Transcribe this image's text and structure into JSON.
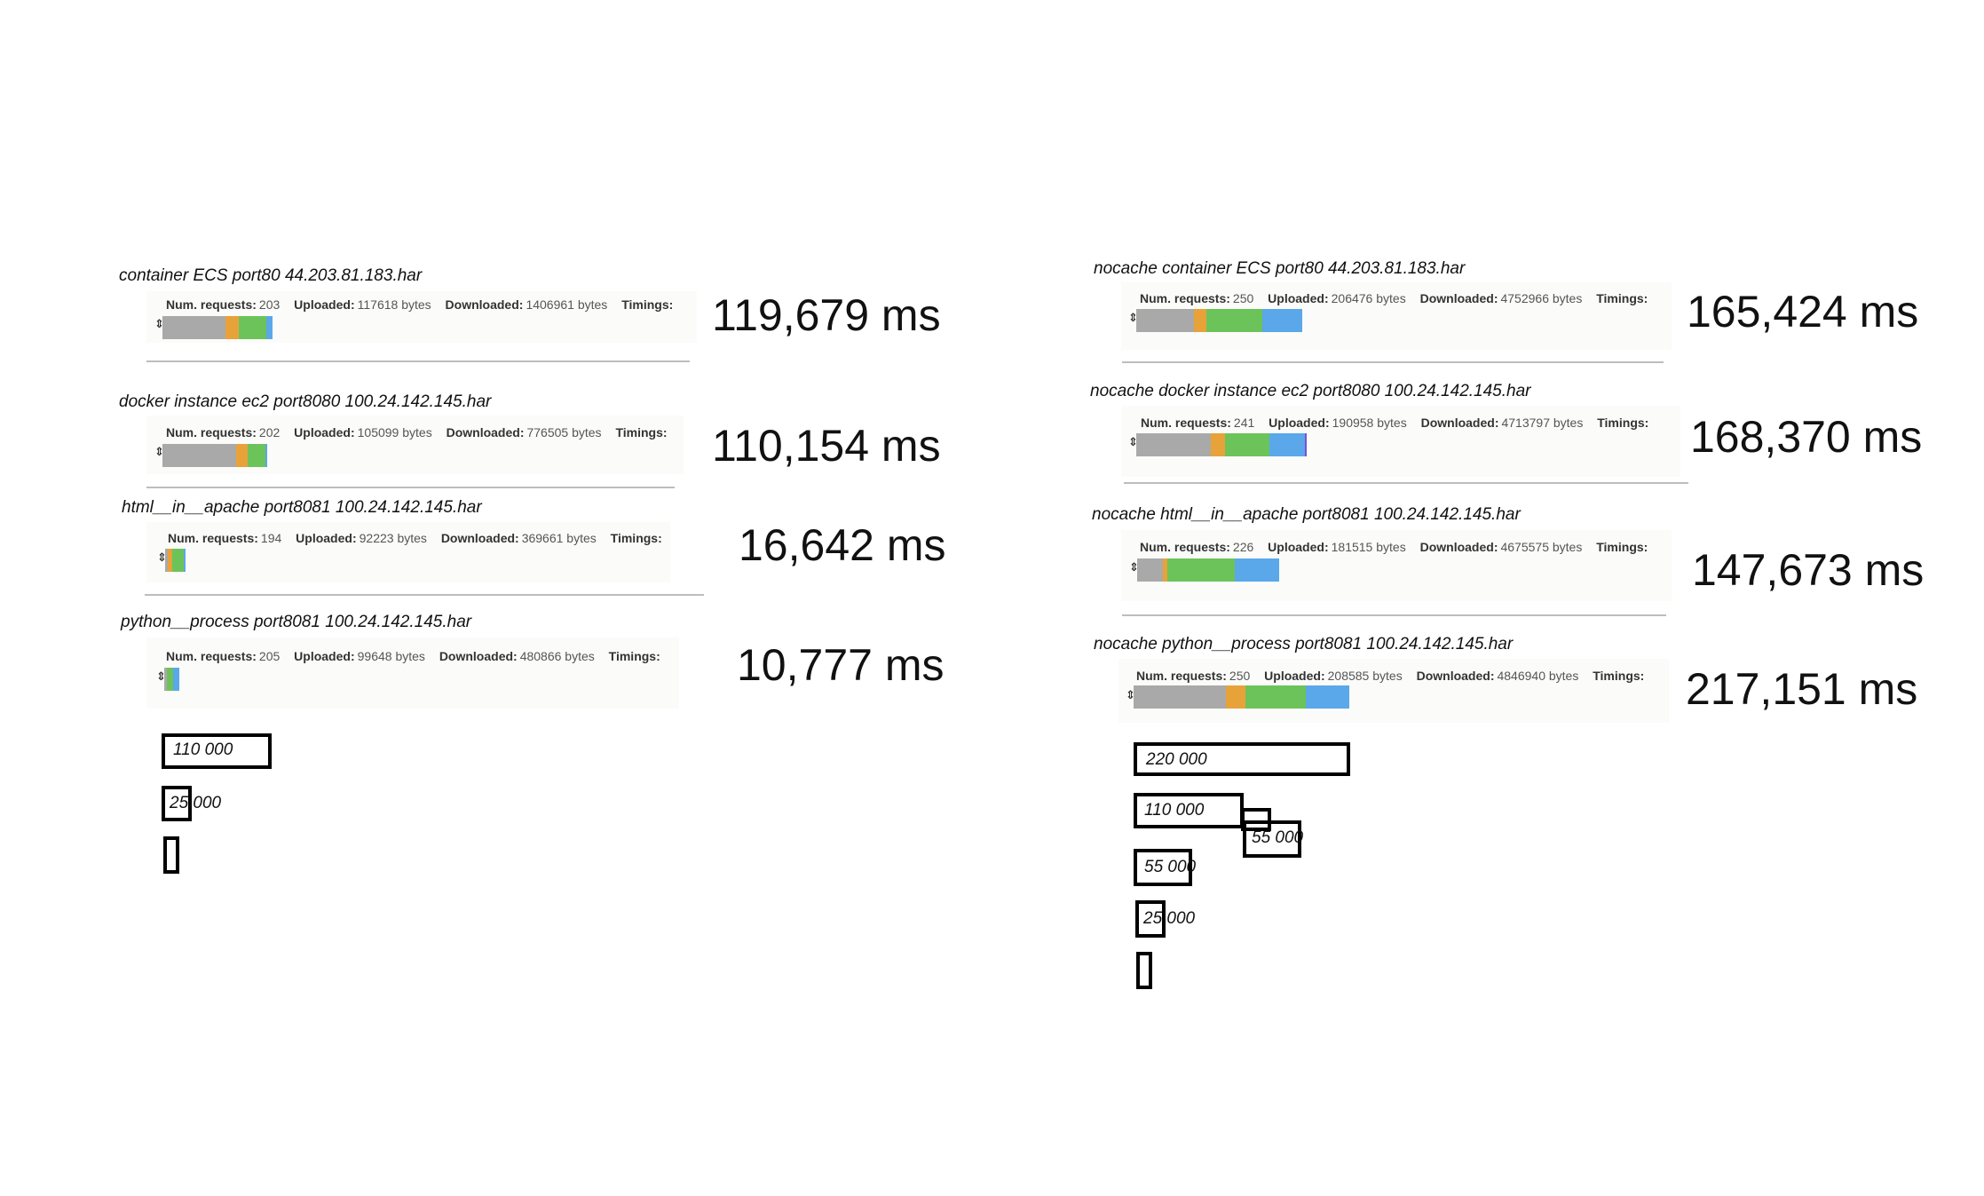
{
  "colors": {
    "gray": "#a9a9a9",
    "orange": "#e8a23a",
    "green": "#6cc35a",
    "blue": "#5aa7ea",
    "purple": "#7b4fd6"
  },
  "labels": {
    "num_requests": "Num. requests:",
    "uploaded": "Uploaded:",
    "downloaded": "Downloaded:",
    "timings": "Timings:",
    "handle_glyph": "⇕"
  },
  "chart_data": [
    {
      "type": "bar",
      "panel": "left",
      "series": [
        {
          "name": "container ECS port80 44.203.81.183.har",
          "num_requests": "203",
          "uploaded": "117618 bytes",
          "downloaded": "1406961 bytes",
          "total_time": "119,679 ms",
          "total_ms": 119679,
          "segments": [
            {
              "color": "gray",
              "value": 0.57
            },
            {
              "color": "orange",
              "value": 0.12
            },
            {
              "color": "green",
              "value": 0.25
            },
            {
              "color": "blue",
              "value": 0.06
            }
          ]
        },
        {
          "name": "docker instance ec2 port8080 100.24.142.145.har",
          "num_requests": "202",
          "uploaded": "105099 bytes",
          "downloaded": "776505 bytes",
          "total_time": "110,154 ms",
          "total_ms": 110154,
          "segments": [
            {
              "color": "gray",
              "value": 0.7
            },
            {
              "color": "orange",
              "value": 0.11
            },
            {
              "color": "green",
              "value": 0.17
            },
            {
              "color": "blue",
              "value": 0.02
            }
          ]
        },
        {
          "name": "html__in__apache port8081 100.24.142.145.har",
          "num_requests": "194",
          "uploaded": "92223 bytes",
          "downloaded": "369661 bytes",
          "total_time": "16,642 ms",
          "total_ms": 16642,
          "segments": [
            {
              "color": "gray",
              "value": 0.15
            },
            {
              "color": "orange",
              "value": 0.2
            },
            {
              "color": "green",
              "value": 0.55
            },
            {
              "color": "blue",
              "value": 0.1
            }
          ]
        },
        {
          "name": "python__process port8081 100.24.142.145.har",
          "num_requests": "205",
          "uploaded": "99648 bytes",
          "downloaded": "480866 bytes",
          "total_time": "10,777 ms",
          "total_ms": 10777,
          "segments": [
            {
              "color": "gray",
              "value": 0.2
            },
            {
              "color": "green",
              "value": 0.4
            },
            {
              "color": "blue",
              "value": 0.4
            }
          ]
        }
      ],
      "scale": [
        {
          "label": "110 000",
          "value": 110000
        },
        {
          "label": "25 000",
          "value": 25000
        },
        {
          "label": "",
          "value": 5000
        }
      ]
    },
    {
      "type": "bar",
      "panel": "right",
      "series": [
        {
          "name": "nocache container ECS port80 44.203.81.183.har",
          "num_requests": "250",
          "uploaded": "206476 bytes",
          "downloaded": "4752966 bytes",
          "total_time": "165,424 ms",
          "total_ms": 165424,
          "segments": [
            {
              "color": "gray",
              "value": 0.35
            },
            {
              "color": "orange",
              "value": 0.07
            },
            {
              "color": "green",
              "value": 0.34
            },
            {
              "color": "blue",
              "value": 0.24
            }
          ]
        },
        {
          "name": "nocache docker instance ec2 port8080 100.24.142.145.har",
          "num_requests": "241",
          "uploaded": "190958 bytes",
          "downloaded": "4713797 bytes",
          "total_time": "168,370 ms",
          "total_ms": 168370,
          "segments": [
            {
              "color": "gray",
              "value": 0.44
            },
            {
              "color": "orange",
              "value": 0.08
            },
            {
              "color": "green",
              "value": 0.26
            },
            {
              "color": "blue",
              "value": 0.21
            },
            {
              "color": "purple",
              "value": 0.01
            }
          ]
        },
        {
          "name": "nocache html__in__apache port8081 100.24.142.145.har",
          "num_requests": "226",
          "uploaded": "181515 bytes",
          "downloaded": "4675575 bytes",
          "total_time": "147,673 ms",
          "total_ms": 147673,
          "segments": [
            {
              "color": "gray",
              "value": 0.18
            },
            {
              "color": "orange",
              "value": 0.03
            },
            {
              "color": "green",
              "value": 0.48
            },
            {
              "color": "blue",
              "value": 0.31
            }
          ]
        },
        {
          "name": "nocache python__process port8081 100.24.142.145.har",
          "num_requests": "250",
          "uploaded": "208585 bytes",
          "downloaded": "4846940 bytes",
          "total_time": "217,151 ms",
          "total_ms": 217151,
          "segments": [
            {
              "color": "gray",
              "value": 0.43
            },
            {
              "color": "orange",
              "value": 0.09
            },
            {
              "color": "green",
              "value": 0.28
            },
            {
              "color": "blue",
              "value": 0.2
            }
          ]
        }
      ],
      "scale": [
        {
          "label": "220 000",
          "value": 220000
        },
        {
          "label": "110 000",
          "value": 110000
        },
        {
          "label": "55 000",
          "value": 55000
        },
        {
          "label": "55 000",
          "value": 55000
        },
        {
          "label": "25 000",
          "value": 25000
        },
        {
          "label": "",
          "value": 5000
        }
      ]
    }
  ]
}
